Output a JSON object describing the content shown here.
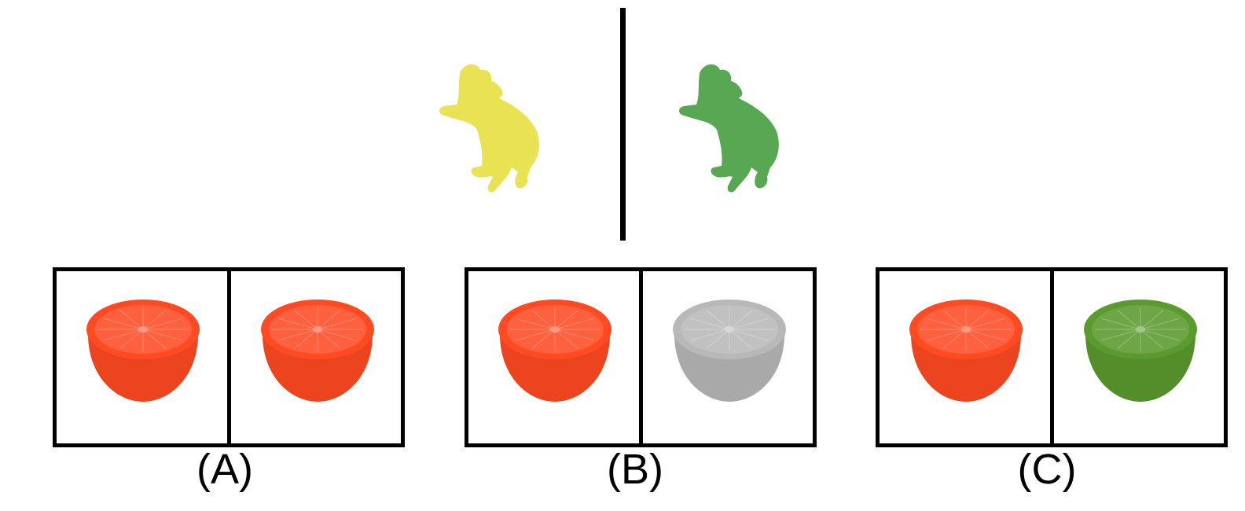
{
  "top": {
    "dog_left_color": "#e8e04a",
    "dog_right_color": "#4ea24a"
  },
  "options": [
    {
      "label": "(A)",
      "left_color": "#ff4a22",
      "right_color": "#ff4a22"
    },
    {
      "label": "(B)",
      "left_color": "#ff4a22",
      "right_color": "#b8b8b8"
    },
    {
      "label": "(C)",
      "left_color": "#ff4a22",
      "right_color": "#5a9a2e"
    }
  ]
}
